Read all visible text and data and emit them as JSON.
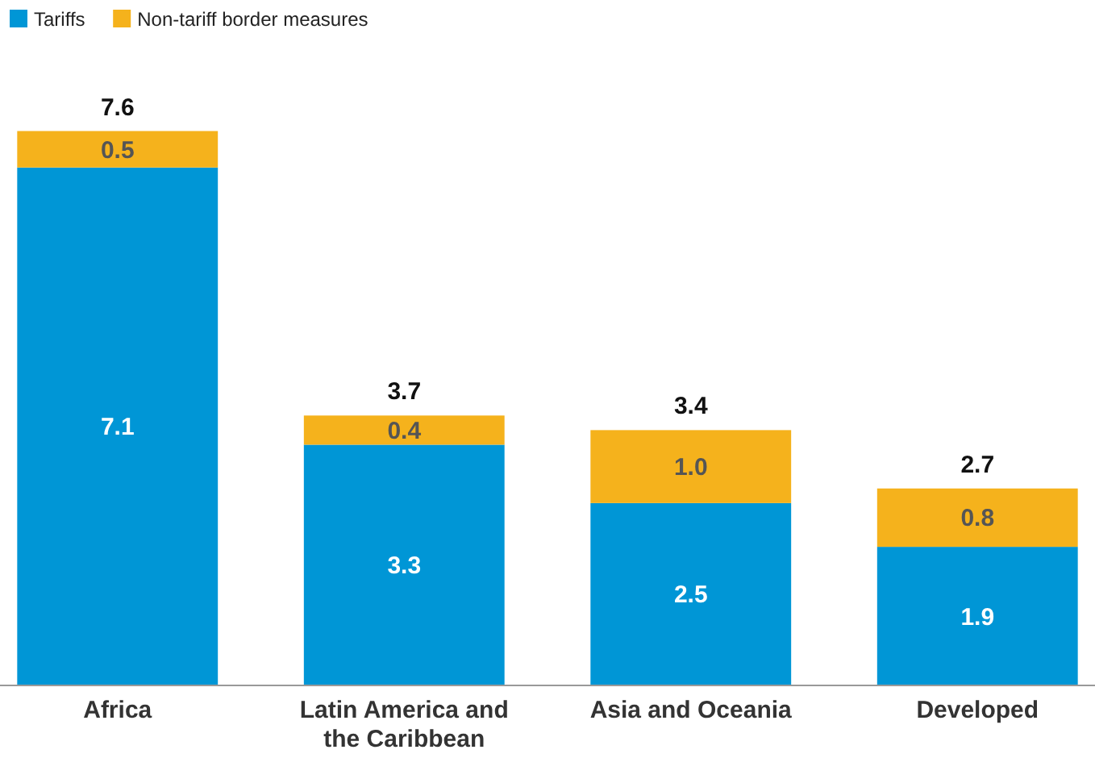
{
  "chart_data": {
    "type": "bar",
    "stacked": true,
    "categories": [
      "Africa",
      "Latin America and the Caribbean",
      "Asia and Oceania",
      "Developed"
    ],
    "series": [
      {
        "name": "Tariffs",
        "color": "#0096d6",
        "values": [
          7.1,
          3.3,
          2.5,
          1.9
        ],
        "value_labels": [
          "7.1",
          "3.3",
          "2.5",
          "1.9"
        ]
      },
      {
        "name": "Non-tariff border measures",
        "color": "#f5b21c",
        "values": [
          0.5,
          0.4,
          1.0,
          0.8
        ],
        "value_labels": [
          "0.5",
          "0.4",
          "1.0",
          "0.8"
        ]
      }
    ],
    "totals": [
      "7.6",
      "3.7",
      "3.4",
      "2.7"
    ],
    "legend": "top left"
  }
}
